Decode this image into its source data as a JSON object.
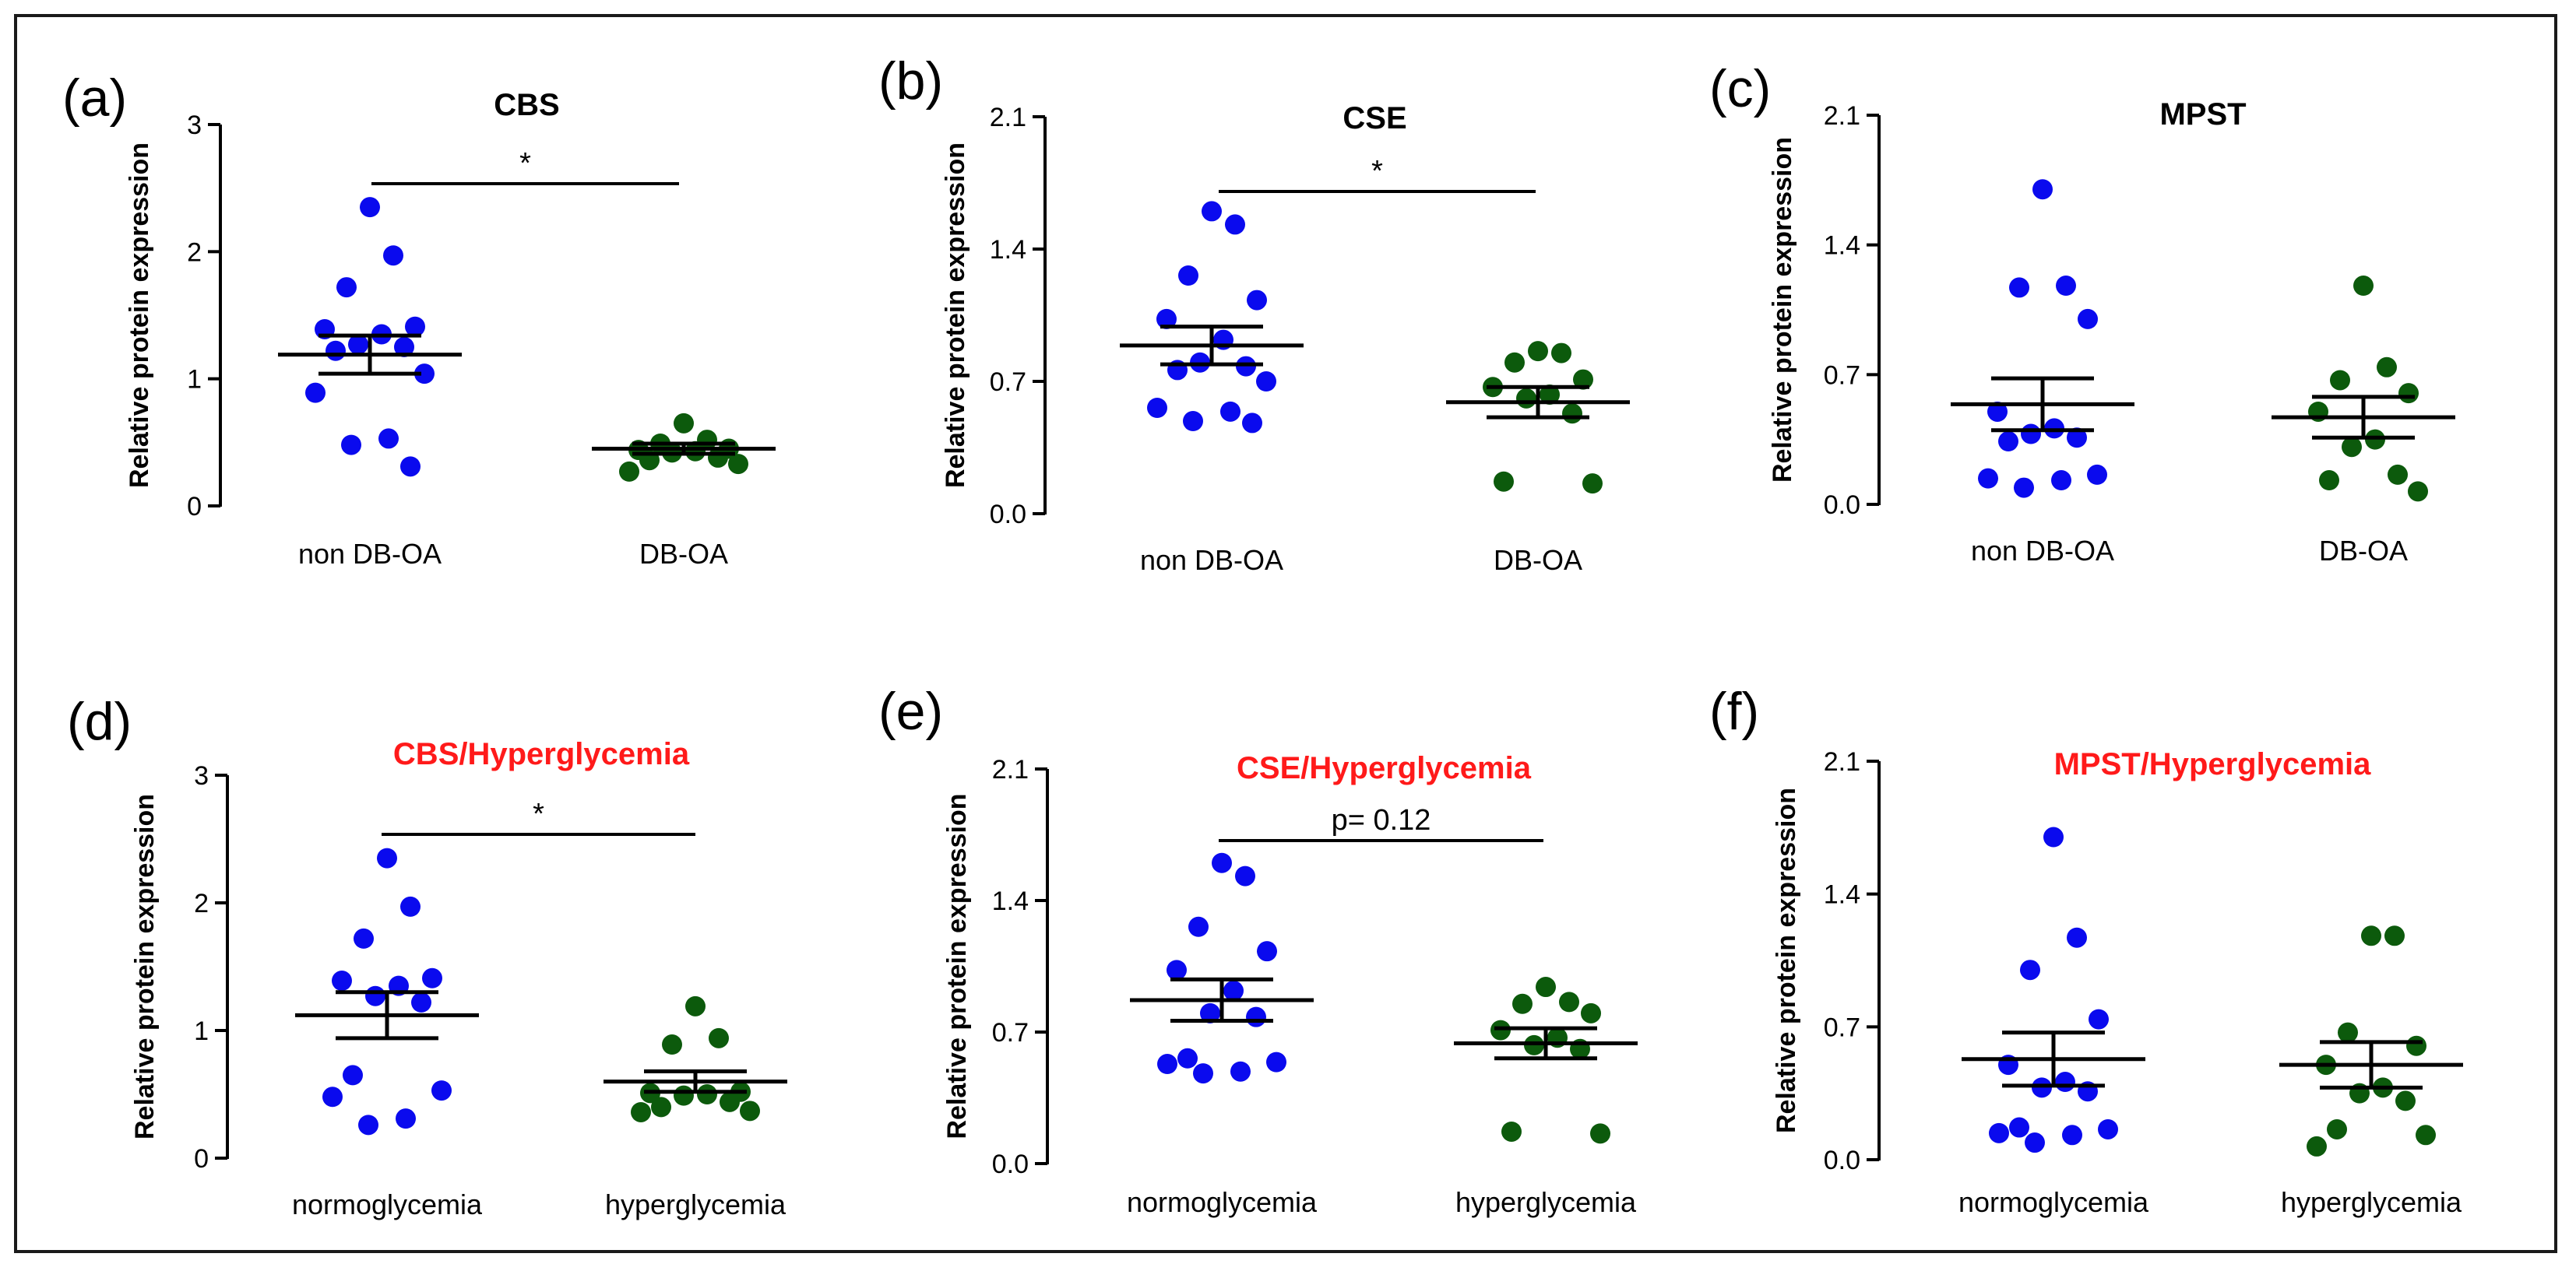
{
  "colors": {
    "group1": "#0a0aee",
    "group2": "#0c5a0c",
    "axis": "#000000",
    "title_default": "#000000",
    "title_red": "#ff1a1a"
  },
  "chart_data": [
    {
      "type": "scatter",
      "panel_label": "(a)",
      "title": "CBS",
      "title_color": "#000000",
      "ylabel": "Relative protein expression",
      "ylim": [
        0,
        3
      ],
      "yticks": [
        "0",
        "1",
        "2",
        "3"
      ],
      "categories": [
        "non DB-OA",
        "DB-OA"
      ],
      "series": [
        {
          "name": "non DB-OA",
          "color": "#0a0aee",
          "values": [
            2.35,
            1.97,
            1.72,
            1.41,
            1.39,
            1.35,
            1.27,
            1.25,
            1.22,
            1.04,
            0.89,
            0.53,
            0.48,
            0.31
          ],
          "mean": 1.19,
          "sem": 0.15
        },
        {
          "name": "DB-OA",
          "color": "#0c5a0c",
          "values": [
            0.65,
            0.52,
            0.49,
            0.45,
            0.44,
            0.43,
            0.42,
            0.38,
            0.36,
            0.33,
            0.27
          ],
          "mean": 0.45,
          "sem": 0.04
        }
      ],
      "significance": "*"
    },
    {
      "type": "scatter",
      "panel_label": "(b)",
      "title": "CSE",
      "title_color": "#000000",
      "ylabel": "Relative protein expression",
      "ylim": [
        0,
        2.1
      ],
      "yticks": [
        "0.0",
        "0.7",
        "1.4",
        "2.1"
      ],
      "categories": [
        "non DB-OA",
        "DB-OA"
      ],
      "series": [
        {
          "name": "non DB-OA",
          "color": "#0a0aee",
          "values": [
            1.6,
            1.53,
            1.26,
            1.13,
            1.03,
            0.92,
            0.8,
            0.78,
            0.76,
            0.7,
            0.56,
            0.54,
            0.49,
            0.48
          ],
          "mean": 0.89,
          "sem": 0.1
        },
        {
          "name": "DB-OA",
          "color": "#0c5a0c",
          "values": [
            0.86,
            0.85,
            0.8,
            0.71,
            0.67,
            0.63,
            0.61,
            0.53,
            0.17,
            0.16
          ],
          "mean": 0.59,
          "sem": 0.08
        }
      ],
      "significance": "*"
    },
    {
      "type": "scatter",
      "panel_label": "(c)",
      "title": "MPST",
      "title_color": "#000000",
      "ylabel": "Relative protein expression",
      "ylim": [
        0,
        2.1
      ],
      "yticks": [
        "0.0",
        "0.7",
        "1.4",
        "2.1"
      ],
      "categories": [
        "non DB-OA",
        "DB-OA"
      ],
      "series": [
        {
          "name": "non DB-OA",
          "color": "#0a0aee",
          "values": [
            1.7,
            1.18,
            1.17,
            1.0,
            0.5,
            0.41,
            0.38,
            0.36,
            0.34,
            0.16,
            0.14,
            0.13,
            0.09
          ],
          "mean": 0.54,
          "sem": 0.14
        },
        {
          "name": "DB-OA",
          "color": "#0c5a0c",
          "values": [
            1.18,
            0.74,
            0.67,
            0.6,
            0.5,
            0.35,
            0.31,
            0.16,
            0.13,
            0.07
          ],
          "mean": 0.47,
          "sem": 0.11
        }
      ],
      "significance": ""
    },
    {
      "type": "scatter",
      "panel_label": "(d)",
      "title": "CBS/Hyperglycemia",
      "title_color": "#ff1a1a",
      "ylabel": "Relative protein expression",
      "ylim": [
        0,
        3
      ],
      "yticks": [
        "0",
        "1",
        "2",
        "3"
      ],
      "categories": [
        "normoglycemia",
        "hyperglycemia"
      ],
      "series": [
        {
          "name": "normoglycemia",
          "color": "#0a0aee",
          "values": [
            2.35,
            1.97,
            1.72,
            1.41,
            1.39,
            1.35,
            1.27,
            1.22,
            0.65,
            0.53,
            0.48,
            0.31,
            0.26
          ],
          "mean": 1.12,
          "sem": 0.18
        },
        {
          "name": "hyperglycemia",
          "color": "#0c5a0c",
          "values": [
            1.19,
            0.94,
            0.89,
            0.52,
            0.51,
            0.5,
            0.49,
            0.44,
            0.4,
            0.37,
            0.36
          ],
          "mean": 0.6,
          "sem": 0.08
        }
      ],
      "significance": "*"
    },
    {
      "type": "scatter",
      "panel_label": "(e)",
      "title": "CSE/Hyperglycemia",
      "title_color": "#ff1a1a",
      "ylabel": "Relative protein expression",
      "ylim": [
        0,
        2.1
      ],
      "yticks": [
        "0.0",
        "0.7",
        "1.4",
        "2.1"
      ],
      "categories": [
        "normoglycemia",
        "hyperglycemia"
      ],
      "series": [
        {
          "name": "normoglycemia",
          "color": "#0a0aee",
          "values": [
            1.6,
            1.53,
            1.26,
            1.13,
            1.03,
            0.92,
            0.8,
            0.78,
            0.56,
            0.54,
            0.53,
            0.49,
            0.48
          ],
          "mean": 0.87,
          "sem": 0.11
        },
        {
          "name": "hyperglycemia",
          "color": "#0c5a0c",
          "values": [
            0.94,
            0.86,
            0.85,
            0.8,
            0.71,
            0.67,
            0.63,
            0.61,
            0.17,
            0.16
          ],
          "mean": 0.64,
          "sem": 0.08
        }
      ],
      "significance": "p= 0.12"
    },
    {
      "type": "scatter",
      "panel_label": "(f)",
      "title": "MPST/Hyperglycemia",
      "title_color": "#ff1a1a",
      "ylabel": "Relative protein expression",
      "ylim": [
        0,
        2.1
      ],
      "yticks": [
        "0.0",
        "0.7",
        "1.4",
        "2.1"
      ],
      "categories": [
        "normoglycemia",
        "hyperglycemia"
      ],
      "series": [
        {
          "name": "normoglycemia",
          "color": "#0a0aee",
          "values": [
            1.7,
            1.17,
            1.0,
            0.74,
            0.5,
            0.41,
            0.38,
            0.36,
            0.17,
            0.16,
            0.14,
            0.13,
            0.09
          ],
          "mean": 0.53,
          "sem": 0.14
        },
        {
          "name": "hyperglycemia",
          "color": "#0c5a0c",
          "values": [
            1.18,
            1.18,
            0.67,
            0.6,
            0.5,
            0.38,
            0.35,
            0.31,
            0.16,
            0.13,
            0.07
          ],
          "mean": 0.5,
          "sem": 0.12
        }
      ],
      "significance": ""
    }
  ]
}
